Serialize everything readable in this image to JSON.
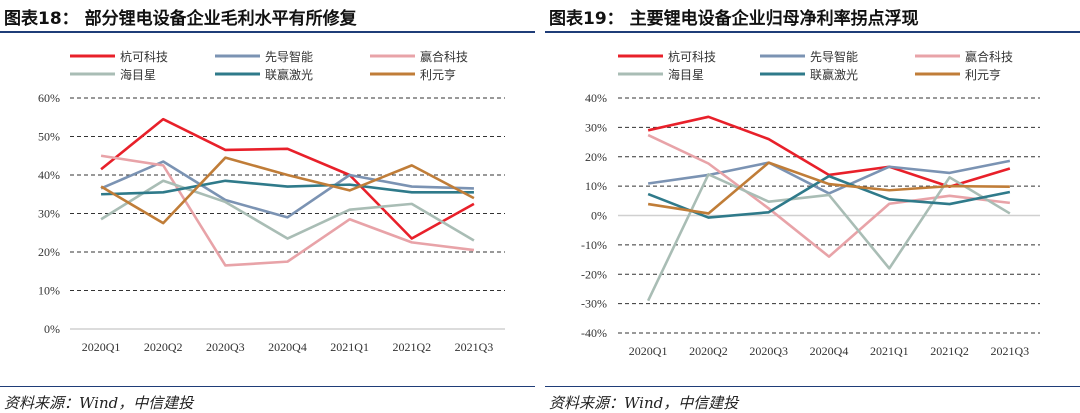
{
  "chart_data": [
    {
      "type": "line",
      "title": "图表18： 部分锂电设备企业毛利水平有所修复",
      "source": "资料来源：Wind，中信建投",
      "categories": [
        "2020Q1",
        "2020Q2",
        "2020Q3",
        "2020Q4",
        "2021Q1",
        "2021Q2",
        "2021Q3"
      ],
      "ylim": [
        0,
        60
      ],
      "yticks": [
        0,
        10,
        20,
        30,
        40,
        50,
        60
      ],
      "ytick_format": "%",
      "grid": "horizontal-dashed",
      "legend": "top",
      "series": [
        {
          "name": "杭可科技",
          "color": "#e8202a",
          "values": [
            41.5,
            54.5,
            46.5,
            46.8,
            40,
            23.5,
            32.5
          ]
        },
        {
          "name": "先导智能",
          "color": "#7b93b3",
          "values": [
            36.5,
            43.5,
            33.5,
            29,
            40,
            37,
            36.5
          ]
        },
        {
          "name": "赢合科技",
          "color": "#e8a3a8",
          "values": [
            45,
            42.5,
            16.5,
            17.5,
            28.5,
            22.5,
            20.5
          ]
        },
        {
          "name": "海目星",
          "color": "#a9bdb5",
          "values": [
            28.5,
            38.5,
            33,
            23.5,
            31,
            32.5,
            23
          ]
        },
        {
          "name": "联赢激光",
          "color": "#2f7a8a",
          "values": [
            35,
            35.5,
            38.5,
            37,
            37.5,
            35.5,
            35.5
          ]
        },
        {
          "name": "利元亨",
          "color": "#c07d38",
          "values": [
            37,
            27.5,
            44.5,
            40,
            36,
            42.5,
            34
          ]
        }
      ]
    },
    {
      "type": "line",
      "title": "图表19： 主要锂电设备企业归母净利率拐点浮现",
      "source": "资料来源：Wind，中信建投",
      "categories": [
        "2020Q1",
        "2020Q2",
        "2020Q3",
        "2020Q4",
        "2021Q1",
        "2021Q2",
        "2021Q3"
      ],
      "ylim": [
        -40,
        40
      ],
      "yticks": [
        -40,
        -30,
        -20,
        -10,
        0,
        10,
        20,
        30,
        40
      ],
      "ytick_format": "%",
      "grid": "horizontal-dashed",
      "legend": "top",
      "series": [
        {
          "name": "杭可科技",
          "color": "#e8202a",
          "values": [
            29,
            33.6,
            26,
            13.8,
            16.6,
            9.8,
            16
          ]
        },
        {
          "name": "先导智能",
          "color": "#7b93b3",
          "values": [
            10.9,
            13.8,
            18,
            7.5,
            16.6,
            14.5,
            18.6
          ]
        },
        {
          "name": "赢合科技",
          "color": "#e8a3a8",
          "values": [
            27.4,
            17.7,
            2.4,
            -14,
            4,
            6.7,
            4.3
          ]
        },
        {
          "name": "海目星",
          "color": "#a9bdb5",
          "values": [
            -29,
            14,
            4.7,
            7,
            -18,
            13,
            0.7
          ]
        },
        {
          "name": "联赢激光",
          "color": "#2f7a8a",
          "values": [
            7.3,
            -0.7,
            1.1,
            13.4,
            5.5,
            3.9,
            8
          ]
        },
        {
          "name": "利元亨",
          "color": "#c07d38",
          "values": [
            3.9,
            0.7,
            18,
            10.7,
            8.6,
            10,
            9.8
          ]
        }
      ]
    }
  ]
}
